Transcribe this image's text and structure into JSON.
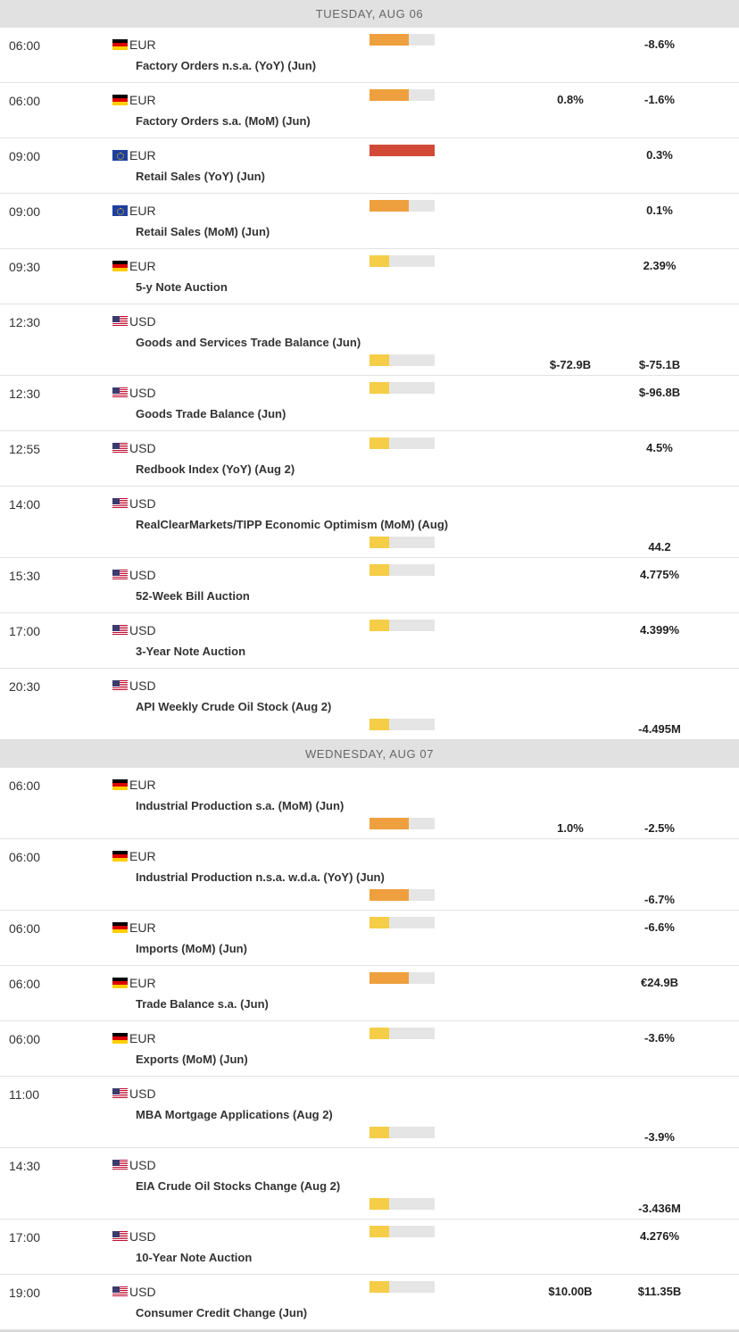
{
  "colors": {
    "high": "#d24a37",
    "medium": "#ee9f3e",
    "low": "#f5cd46",
    "track": "#e5e5e5",
    "header_bg": "#e1e1e1"
  },
  "days": [
    {
      "label": "TUESDAY, AUG 06",
      "events": [
        {
          "time": "06:00",
          "flag": "de",
          "currency": "EUR",
          "name": "Factory Orders n.s.a. (YoY) (Jun)",
          "impact": "medium",
          "impact_fraction": 0.6,
          "actual": "",
          "previous": "-8.6%",
          "tall": false
        },
        {
          "time": "06:00",
          "flag": "de",
          "currency": "EUR",
          "name": "Factory Orders s.a. (MoM) (Jun)",
          "impact": "medium",
          "impact_fraction": 0.6,
          "actual": "0.8%",
          "previous": "-1.6%",
          "tall": false
        },
        {
          "time": "09:00",
          "flag": "eu",
          "currency": "EUR",
          "name": "Retail Sales (YoY) (Jun)",
          "impact": "high",
          "impact_fraction": 1.0,
          "actual": "",
          "previous": "0.3%",
          "tall": false
        },
        {
          "time": "09:00",
          "flag": "eu",
          "currency": "EUR",
          "name": "Retail Sales (MoM) (Jun)",
          "impact": "medium",
          "impact_fraction": 0.6,
          "actual": "",
          "previous": "0.1%",
          "tall": false
        },
        {
          "time": "09:30",
          "flag": "de",
          "currency": "EUR",
          "name": "5-y Note Auction",
          "impact": "low",
          "impact_fraction": 0.3,
          "actual": "",
          "previous": "2.39%",
          "tall": false
        },
        {
          "time": "12:30",
          "flag": "us",
          "currency": "USD",
          "name": "Goods and Services Trade Balance (Jun)",
          "impact": "low",
          "impact_fraction": 0.3,
          "actual": "$-72.9B",
          "previous": "$-75.1B",
          "tall": true
        },
        {
          "time": "12:30",
          "flag": "us",
          "currency": "USD",
          "name": "Goods Trade Balance (Jun)",
          "impact": "low",
          "impact_fraction": 0.3,
          "actual": "",
          "previous": "$-96.8B",
          "tall": false
        },
        {
          "time": "12:55",
          "flag": "us",
          "currency": "USD",
          "name": "Redbook Index (YoY) (Aug 2)",
          "impact": "low",
          "impact_fraction": 0.3,
          "actual": "",
          "previous": "4.5%",
          "tall": false
        },
        {
          "time": "14:00",
          "flag": "us",
          "currency": "USD",
          "name": "RealClearMarkets/TIPP Economic Optimism (MoM) (Aug)",
          "impact": "low",
          "impact_fraction": 0.3,
          "actual": "",
          "previous": "44.2",
          "tall": true
        },
        {
          "time": "15:30",
          "flag": "us",
          "currency": "USD",
          "name": "52-Week Bill Auction",
          "impact": "low",
          "impact_fraction": 0.3,
          "actual": "",
          "previous": "4.775%",
          "tall": false
        },
        {
          "time": "17:00",
          "flag": "us",
          "currency": "USD",
          "name": "3-Year Note Auction",
          "impact": "low",
          "impact_fraction": 0.3,
          "actual": "",
          "previous": "4.399%",
          "tall": false
        },
        {
          "time": "20:30",
          "flag": "us",
          "currency": "USD",
          "name": "API Weekly Crude Oil Stock (Aug 2)",
          "impact": "low",
          "impact_fraction": 0.3,
          "actual": "",
          "previous": "-4.495M",
          "tall": true
        }
      ]
    },
    {
      "label": "WEDNESDAY, AUG 07",
      "events": [
        {
          "time": "06:00",
          "flag": "de",
          "currency": "EUR",
          "name": "Industrial Production s.a. (MoM) (Jun)",
          "impact": "medium",
          "impact_fraction": 0.6,
          "actual": "1.0%",
          "previous": "-2.5%",
          "tall": true
        },
        {
          "time": "06:00",
          "flag": "de",
          "currency": "EUR",
          "name": "Industrial Production n.s.a. w.d.a. (YoY) (Jun)",
          "impact": "medium",
          "impact_fraction": 0.6,
          "actual": "",
          "previous": "-6.7%",
          "tall": true
        },
        {
          "time": "06:00",
          "flag": "de",
          "currency": "EUR",
          "name": "Imports (MoM) (Jun)",
          "impact": "low",
          "impact_fraction": 0.3,
          "actual": "",
          "previous": "-6.6%",
          "tall": false
        },
        {
          "time": "06:00",
          "flag": "de",
          "currency": "EUR",
          "name": "Trade Balance s.a. (Jun)",
          "impact": "medium",
          "impact_fraction": 0.6,
          "actual": "",
          "previous": "€24.9B",
          "tall": false
        },
        {
          "time": "06:00",
          "flag": "de",
          "currency": "EUR",
          "name": "Exports (MoM) (Jun)",
          "impact": "low",
          "impact_fraction": 0.3,
          "actual": "",
          "previous": "-3.6%",
          "tall": false
        },
        {
          "time": "11:00",
          "flag": "us",
          "currency": "USD",
          "name": "MBA Mortgage Applications (Aug 2)",
          "impact": "low",
          "impact_fraction": 0.3,
          "actual": "",
          "previous": "-3.9%",
          "tall": true
        },
        {
          "time": "14:30",
          "flag": "us",
          "currency": "USD",
          "name": "EIA Crude Oil Stocks Change (Aug 2)",
          "impact": "low",
          "impact_fraction": 0.3,
          "actual": "",
          "previous": "-3.436M",
          "tall": true
        },
        {
          "time": "17:00",
          "flag": "us",
          "currency": "USD",
          "name": "10-Year Note Auction",
          "impact": "low",
          "impact_fraction": 0.3,
          "actual": "",
          "previous": "4.276%",
          "tall": false
        },
        {
          "time": "19:00",
          "flag": "us",
          "currency": "USD",
          "name": "Consumer Credit Change (Jun)",
          "impact": "low",
          "impact_fraction": 0.3,
          "actual": "$10.00B",
          "previous": "$11.35B",
          "tall": false
        }
      ]
    }
  ]
}
